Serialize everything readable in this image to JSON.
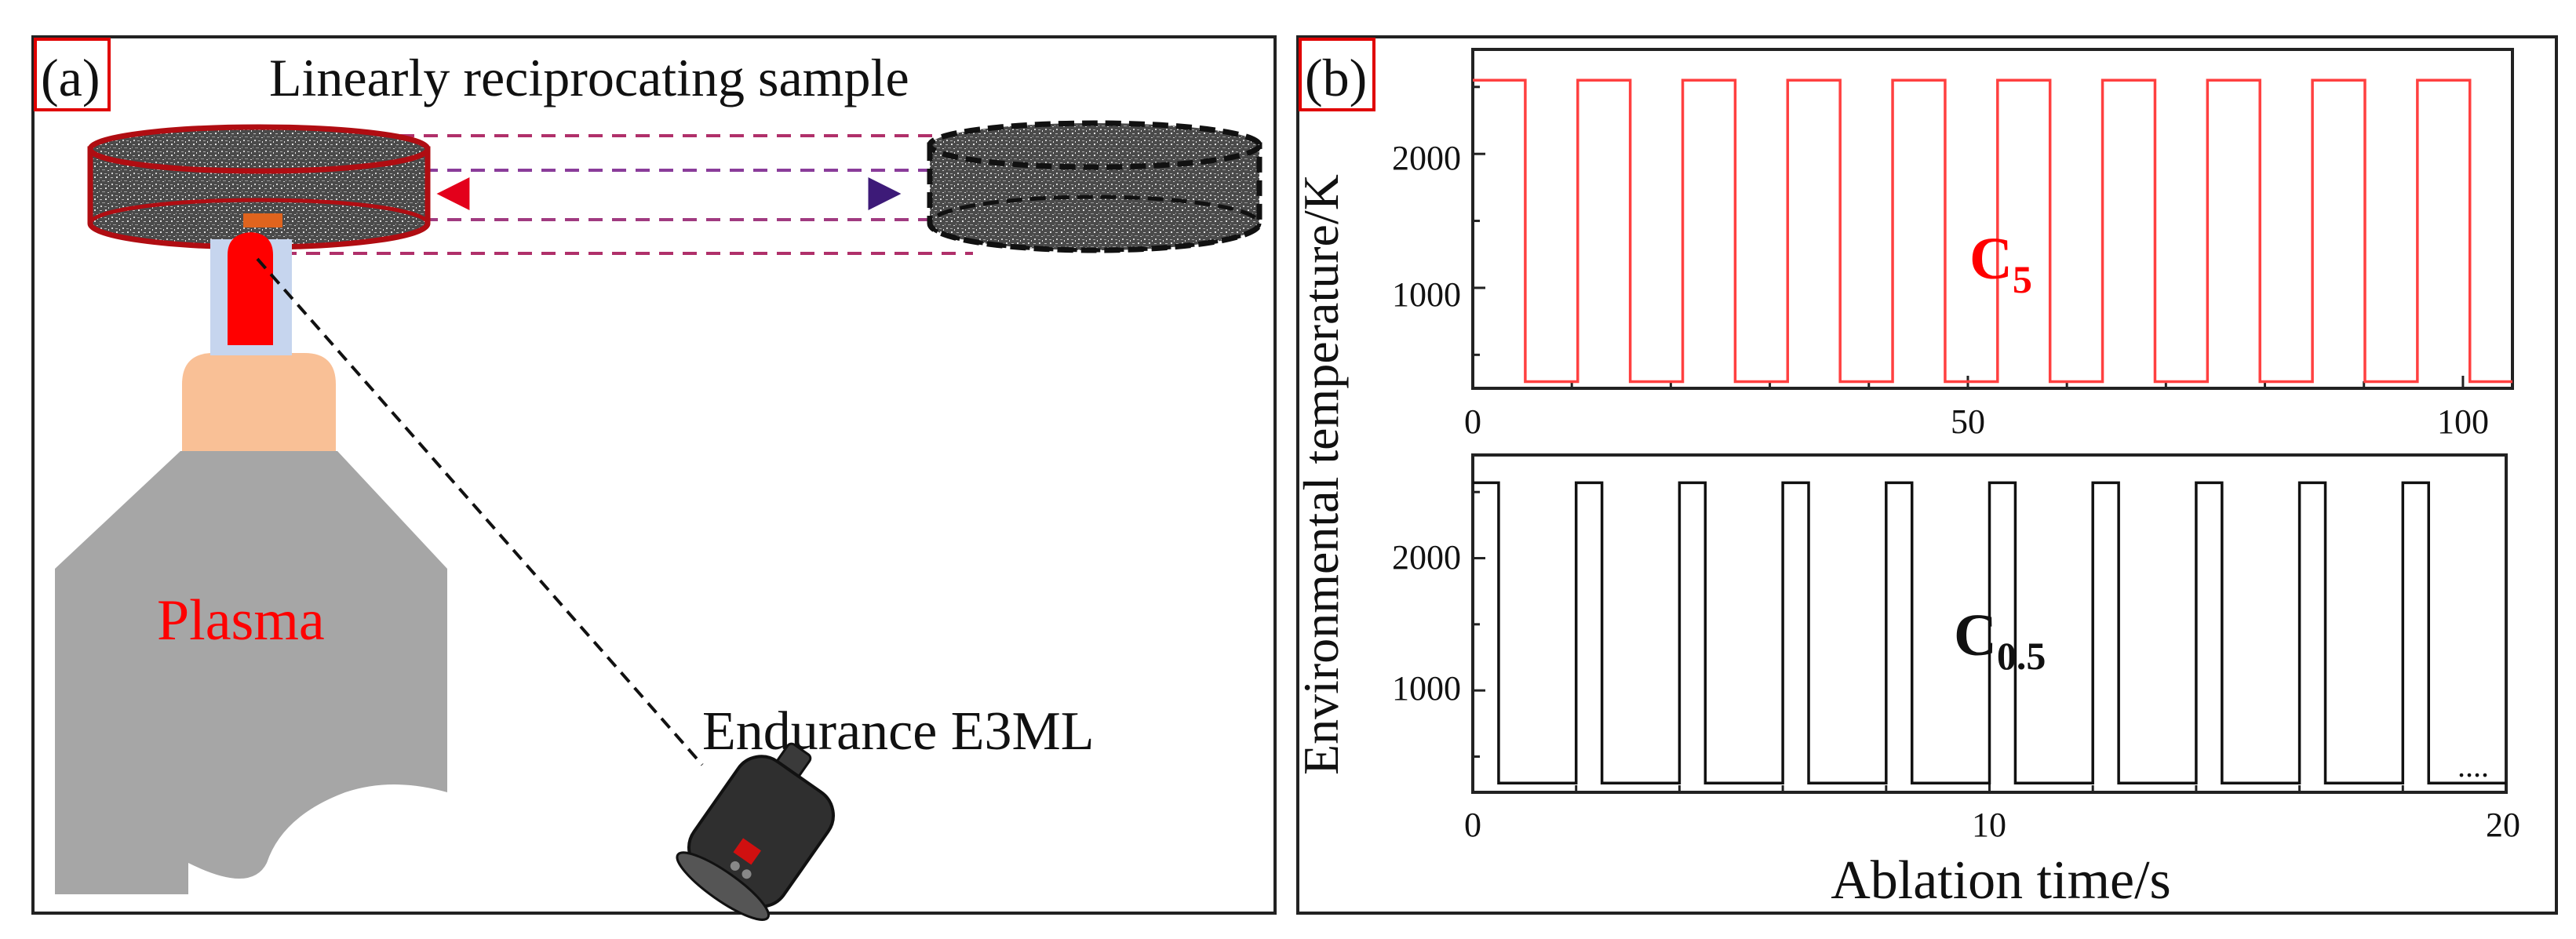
{
  "panel_a": {
    "tag": "(a)",
    "title": "Linearly reciprocating sample",
    "plasma_label": "Plasma",
    "pyrometer_label": "Endurance E3ML",
    "colors": {
      "sample_edge": "#b00d12",
      "flame": "#ff0000",
      "plume": "#c6d5ee",
      "nozzle": "#f9c096",
      "torch": "#a6a6a6",
      "accent_red": "#ff0000",
      "accent_purple": "#7030a0"
    }
  },
  "panel_b": {
    "tag": "(b)",
    "ylabel": "Environmental temperature/K",
    "xlabel": "Ablation time/s",
    "top_label": {
      "main": "C",
      "sub": "5"
    },
    "bottom_label": {
      "main": "C",
      "sub": "0.5"
    },
    "ellipsis": "....",
    "top_ticks_x": [
      "0",
      "50",
      "100"
    ],
    "top_ticks_y": [
      "1000",
      "2000"
    ],
    "bottom_ticks_x": [
      "0",
      "10",
      "20"
    ],
    "bottom_ticks_y": [
      "1000",
      "2000"
    ]
  },
  "chart_data": [
    {
      "type": "line",
      "series": [
        {
          "name": "C5",
          "color": "#ff4040",
          "period": 10.6,
          "high_duration": 5.3,
          "start_high": true,
          "high_value": 2550,
          "low_value": 300
        }
      ],
      "xlim": [
        0,
        105
      ],
      "ylim": [
        250,
        2780
      ],
      "xticks": [
        0,
        50,
        100
      ],
      "yticks": [
        1000,
        2000
      ],
      "grid": false
    },
    {
      "type": "line",
      "series": [
        {
          "name": "C0.5",
          "color": "#000000",
          "period": 2.0,
          "high_duration": 0.5,
          "start_high": true,
          "high_value": 2570,
          "low_value": 300
        }
      ],
      "xlim": [
        0,
        20
      ],
      "ylim": [
        230,
        2780
      ],
      "xticks": [
        0,
        10,
        20
      ],
      "yticks": [
        1000,
        2000
      ],
      "grid": false
    }
  ]
}
